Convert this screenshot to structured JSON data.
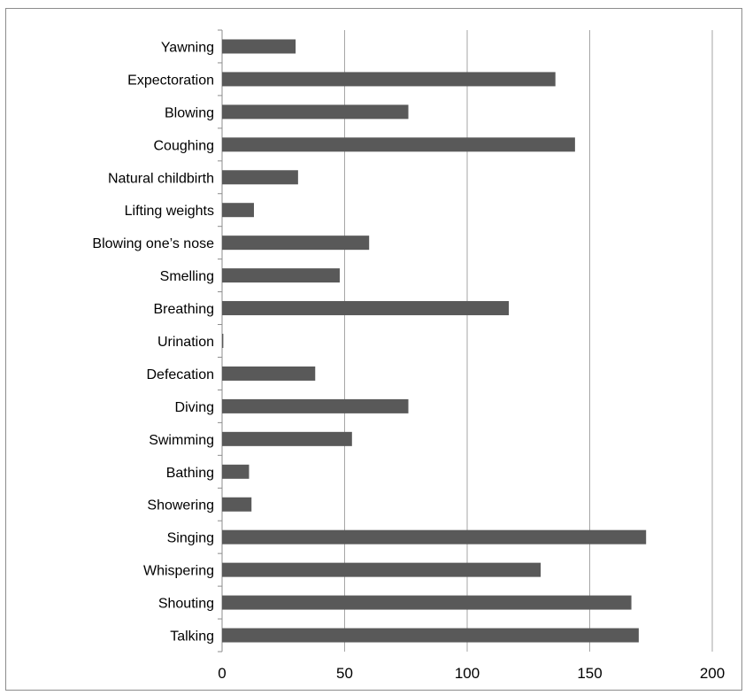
{
  "chart_data": {
    "type": "bar",
    "orientation": "horizontal",
    "title": "",
    "xlabel": "",
    "ylabel": "",
    "xlim": [
      0,
      200
    ],
    "x_ticks": [
      0,
      50,
      100,
      150,
      200
    ],
    "grid": "vertical major gridlines",
    "legend": "none",
    "bar_color": "#595959",
    "grid_color": "#a6a6a6",
    "categories": [
      "Yawning",
      "Expectoration",
      "Blowing",
      "Coughing",
      "Natural childbirth",
      "Lifting weights",
      "Blowing one’s nose",
      "Smelling",
      "Breathing",
      "Urination",
      "Defecation",
      "Diving",
      "Swimming",
      "Bathing",
      "Showering",
      "Singing",
      "Whispering",
      "Shouting",
      "Talking"
    ],
    "values": [
      30,
      136,
      76,
      144,
      31,
      13,
      60,
      48,
      117,
      0.5,
      38,
      76,
      53,
      11,
      12,
      173,
      130,
      167,
      170
    ]
  }
}
